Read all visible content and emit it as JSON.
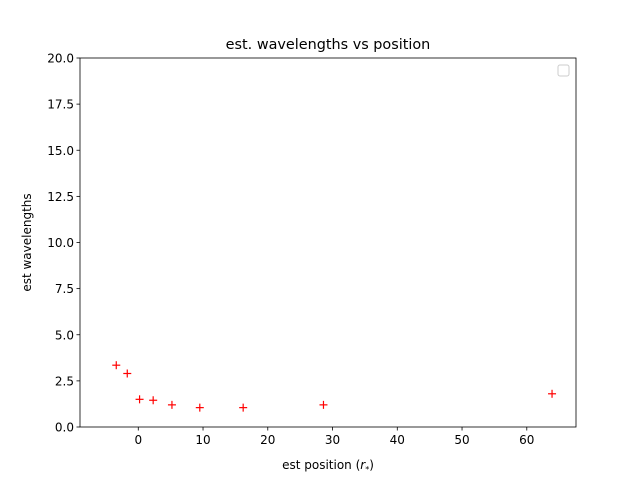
{
  "chart_data": {
    "type": "scatter",
    "title": "est. wavelengths vs position",
    "xlabel": "est position (",
    "xlabel_math": "r",
    "xlabel_sub": "*",
    "xlabel_close": ")",
    "ylabel": "est wavelengths",
    "xlim": [
      -9,
      67.6
    ],
    "ylim": [
      0,
      20
    ],
    "xticks": [
      0,
      10,
      20,
      30,
      40,
      50,
      60
    ],
    "xtick_labels": [
      "0",
      "10",
      "20",
      "30",
      "40",
      "50",
      "60"
    ],
    "yticks": [
      0,
      2.5,
      5,
      7.5,
      10,
      12.5,
      15,
      17.5,
      20
    ],
    "ytick_labels": [
      "0.0",
      "2.5",
      "5.0",
      "7.5",
      "10.0",
      "12.5",
      "15.0",
      "17.5",
      "20.0"
    ],
    "grid": false,
    "legend": "upper right, empty",
    "marker": "+",
    "color": "#ff0000",
    "series": [
      {
        "x": [
          -3.4,
          -1.7,
          0.2,
          2.3,
          5.2,
          9.5,
          16.2,
          28.6,
          63.9
        ],
        "y": [
          3.35,
          2.9,
          1.5,
          1.45,
          1.2,
          1.05,
          1.05,
          1.2,
          1.8
        ]
      }
    ]
  }
}
